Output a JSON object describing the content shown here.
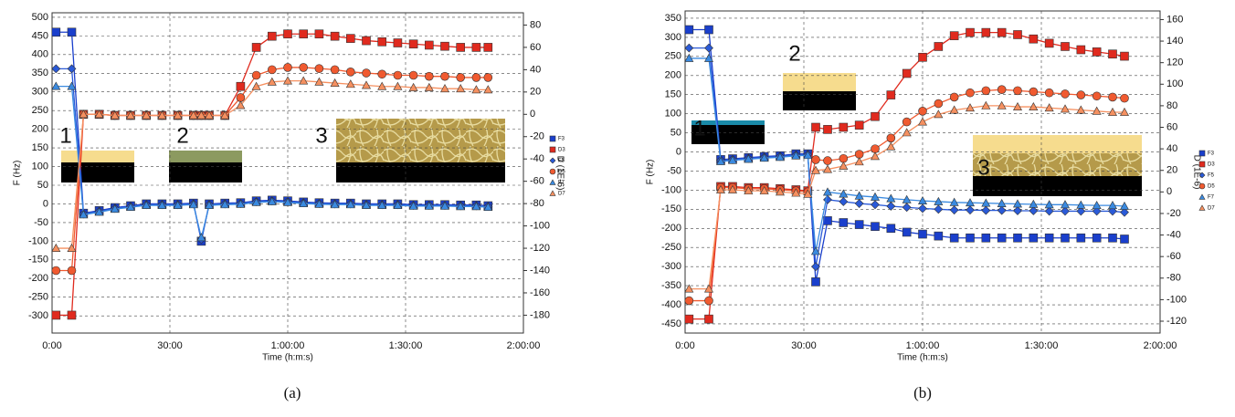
{
  "chart_data": [
    {
      "type": "line",
      "label": "(a)",
      "x_label": "Time (h:m:s)",
      "y_label": "F (Hz)",
      "y2_label": "D (1E-6)",
      "annotations": [
        "1",
        "2",
        "3"
      ],
      "grid": true,
      "xlim": [
        0,
        120
      ],
      "xticks": [
        {
          "value": 0,
          "label": "0:00"
        },
        {
          "value": 30,
          "label": "30:00"
        },
        {
          "value": 60,
          "label": "1:00:00"
        },
        {
          "value": 90,
          "label": "1:30:00"
        },
        {
          "value": 120,
          "label": "2:00:00"
        }
      ],
      "ylim": [
        -346,
        512
      ],
      "yticks": [
        500,
        450,
        400,
        350,
        300,
        250,
        200,
        150,
        100,
        50,
        0,
        -50,
        -100,
        -150,
        -200,
        -250,
        -300
      ],
      "y2lim": [
        -196,
        91
      ],
      "y2ticks": [
        80,
        60,
        40,
        20,
        0,
        -20,
        -40,
        -60,
        -80,
        -100,
        -120,
        -140,
        -160,
        -180
      ],
      "x": [
        1,
        5,
        8,
        12,
        16,
        20,
        24,
        28,
        32,
        36,
        38,
        40,
        44,
        48,
        52,
        56,
        60,
        64,
        68,
        72,
        76,
        80,
        84,
        88,
        92,
        96,
        100,
        104,
        108,
        111
      ],
      "series": [
        {
          "name": "F3",
          "color": "#1a3fcc",
          "marker": "square",
          "values": [
            460,
            460,
            -25,
            -18,
            -10,
            -5,
            0,
            0,
            0,
            2,
            -100,
            0,
            2,
            3,
            8,
            10,
            8,
            5,
            3,
            2,
            2,
            0,
            0,
            0,
            -2,
            -2,
            -2,
            -3,
            -3,
            -5
          ]
        },
        {
          "name": "D3",
          "color": "#e02a1e",
          "marker": "square",
          "axis": "y2",
          "values": [
            -180,
            -180,
            0,
            0,
            -1,
            -1,
            -1,
            -1,
            -1,
            -1,
            -1,
            -1,
            -1,
            25,
            60,
            70,
            72,
            72,
            72,
            70,
            68,
            66,
            65,
            64,
            63,
            62,
            61,
            60,
            60,
            60
          ]
        },
        {
          "name": "F5",
          "color": "#2a5ad8",
          "marker": "diamond",
          "values": [
            362,
            362,
            -27,
            -20,
            -12,
            -7,
            -2,
            -2,
            -2,
            0,
            -95,
            -2,
            0,
            1,
            6,
            8,
            6,
            3,
            1,
            0,
            0,
            -2,
            -2,
            -2,
            -4,
            -4,
            -4,
            -5,
            -5,
            -7
          ]
        },
        {
          "name": "D5",
          "color": "#f05a30",
          "marker": "circle",
          "axis": "y2",
          "values": [
            -140,
            -140,
            0,
            0,
            -1,
            -1,
            -1,
            -1,
            -1,
            -1,
            -1,
            -1,
            -1,
            15,
            35,
            40,
            42,
            42,
            41,
            40,
            38,
            37,
            36,
            35,
            35,
            34,
            34,
            33,
            33,
            33
          ]
        },
        {
          "name": "F7",
          "color": "#3a8ae0",
          "marker": "triangle",
          "values": [
            315,
            315,
            -29,
            -22,
            -14,
            -9,
            -4,
            -4,
            -4,
            -2,
            -90,
            -4,
            -2,
            -1,
            4,
            6,
            4,
            1,
            -1,
            -2,
            -2,
            -4,
            -4,
            -4,
            -6,
            -6,
            -6,
            -7,
            -7,
            -9
          ]
        },
        {
          "name": "D7",
          "color": "#f59060",
          "marker": "triangle",
          "axis": "y2",
          "values": [
            -120,
            -120,
            0,
            0,
            -1,
            -1,
            -1,
            -1,
            -1,
            -1,
            -1,
            -1,
            -1,
            8,
            25,
            29,
            30,
            30,
            29,
            28,
            27,
            26,
            25,
            25,
            24,
            24,
            23,
            23,
            22,
            22
          ]
        }
      ]
    },
    {
      "type": "line",
      "label": "(b)",
      "x_label": "Time (h:m:s)",
      "y_label": "F (Hz)",
      "y2_label": "D (1E-6)",
      "annotations": [
        "1",
        "2",
        "3"
      ],
      "grid": true,
      "xlim": [
        0,
        120
      ],
      "xticks": [
        {
          "value": 0,
          "label": "0:00"
        },
        {
          "value": 30,
          "label": "30:00"
        },
        {
          "value": 60,
          "label": "1:00:00"
        },
        {
          "value": 90,
          "label": "1:30:00"
        },
        {
          "value": 120,
          "label": "2:00:00"
        }
      ],
      "ylim": [
        -474,
        369
      ],
      "yticks": [
        350,
        300,
        250,
        200,
        150,
        100,
        50,
        0,
        -50,
        -100,
        -150,
        -200,
        -250,
        -300,
        -350,
        -400,
        -450
      ],
      "y2lim": [
        -131,
        168
      ],
      "y2ticks": [
        160,
        140,
        120,
        100,
        80,
        60,
        40,
        20,
        0,
        -20,
        -40,
        -60,
        -80,
        -100,
        -120
      ],
      "x": [
        1,
        6,
        9,
        12,
        16,
        20,
        24,
        28,
        31,
        33,
        36,
        40,
        44,
        48,
        52,
        56,
        60,
        64,
        68,
        72,
        76,
        80,
        84,
        88,
        92,
        96,
        100,
        104,
        108,
        111
      ],
      "series": [
        {
          "name": "F3",
          "color": "#1a3fcc",
          "marker": "square",
          "values": [
            320,
            320,
            -20,
            -18,
            -15,
            -12,
            -10,
            -5,
            -5,
            -340,
            -180,
            -185,
            -190,
            -195,
            -200,
            -210,
            -215,
            -220,
            -225,
            -225,
            -225,
            -225,
            -225,
            -225,
            -225,
            -225,
            -225,
            -225,
            -225,
            -228
          ]
        },
        {
          "name": "D3",
          "color": "#e02a1e",
          "marker": "square",
          "axis": "y2",
          "values": [
            -118,
            -118,
            5,
            5,
            4,
            4,
            3,
            2,
            1,
            60,
            58,
            60,
            62,
            70,
            90,
            110,
            125,
            135,
            145,
            148,
            148,
            148,
            146,
            142,
            138,
            135,
            132,
            130,
            128,
            126
          ]
        },
        {
          "name": "F5",
          "color": "#2a5ad8",
          "marker": "diamond",
          "values": [
            272,
            272,
            -22,
            -20,
            -17,
            -14,
            -12,
            -8,
            -7,
            -300,
            -125,
            -130,
            -135,
            -138,
            -142,
            -145,
            -148,
            -150,
            -152,
            -152,
            -153,
            -153,
            -154,
            -154,
            -155,
            -155,
            -155,
            -155,
            -155,
            -158
          ]
        },
        {
          "name": "D5",
          "color": "#f05a30",
          "marker": "circle",
          "axis": "y2",
          "values": [
            -101,
            -101,
            4,
            4,
            3,
            3,
            2,
            1,
            0,
            30,
            29,
            31,
            35,
            40,
            50,
            65,
            75,
            82,
            88,
            92,
            94,
            95,
            94,
            93,
            92,
            91,
            90,
            89,
            88,
            87
          ]
        },
        {
          "name": "F7",
          "color": "#3a8ae0",
          "marker": "triangle",
          "values": [
            245,
            245,
            -25,
            -22,
            -19,
            -16,
            -14,
            -10,
            -9,
            -260,
            -105,
            -110,
            -115,
            -118,
            -122,
            -125,
            -128,
            -130,
            -132,
            -133,
            -134,
            -135,
            -136,
            -137,
            -138,
            -138,
            -139,
            -140,
            -140,
            -142
          ]
        },
        {
          "name": "D7",
          "color": "#f59060",
          "marker": "triangle",
          "axis": "y2",
          "values": [
            -90,
            -90,
            2,
            2,
            1,
            1,
            0,
            -1,
            -2,
            20,
            21,
            24,
            28,
            33,
            42,
            55,
            65,
            72,
            76,
            78,
            80,
            80,
            79,
            79,
            78,
            77,
            76,
            75,
            74,
            74
          ]
        }
      ]
    }
  ]
}
